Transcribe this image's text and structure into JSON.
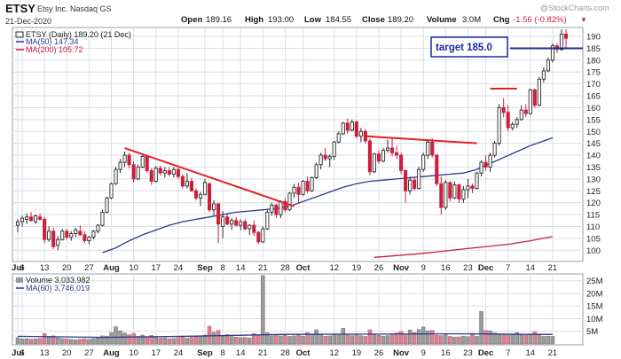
{
  "header": {
    "symbol": "ETSY",
    "company": "Etsy Inc. Nasdaq GS",
    "date": "21-Dec-2020",
    "open_label": "Open",
    "open": "189.16",
    "high_label": "High",
    "high": "193.00",
    "low_label": "Low",
    "low": "184.55",
    "close_label": "Close",
    "close": "189.20",
    "volume_label": "Volume",
    "volume": "3.0M",
    "chg_label": "Chg",
    "chg": "-1.56 (-0.82%)",
    "chg_arrow": "▼",
    "watermark": "@StockCharts.com"
  },
  "legend": {
    "price": "ETSY (Daily) 189.20 (21 Dec)",
    "ma50": "MA(50) 147.34",
    "ma200": "MA(200) 105.72",
    "volume": "Volume 3,033,982",
    "vol_ma": "MA(60) 3,746,019"
  },
  "annotation": {
    "target": "target 185.0"
  },
  "colors": {
    "up": "#2a2a2a",
    "down": "#cc1f3d",
    "ma50": "#2b3a8f",
    "ma200": "#cc1f3d",
    "trend": "#e32020",
    "target_line": "#1c2a9e",
    "vol_up": "#9a9a9a",
    "vol_down": "#d9828f",
    "grid": "#d9dde6"
  },
  "chart_data": [
    {
      "type": "candlestick",
      "title": "ETSY (Daily)",
      "ylim": [
        96,
        193
      ],
      "y_ticks": [
        100,
        105,
        110,
        115,
        120,
        125,
        130,
        135,
        140,
        145,
        150,
        155,
        160,
        165,
        170,
        175,
        180,
        185,
        190
      ],
      "x_tick_labels": [
        {
          "label": "Jul",
          "bold": true,
          "idx": 0
        },
        {
          "label": "6",
          "idx": 1
        },
        {
          "label": "13",
          "idx": 6
        },
        {
          "label": "20",
          "idx": 11
        },
        {
          "label": "27",
          "idx": 16
        },
        {
          "label": "Aug",
          "bold": true,
          "idx": 21
        },
        {
          "label": "10",
          "idx": 26
        },
        {
          "label": "17",
          "idx": 31
        },
        {
          "label": "24",
          "idx": 36
        },
        {
          "label": "Sep",
          "bold": true,
          "idx": 42
        },
        {
          "label": "8",
          "idx": 46
        },
        {
          "label": "14",
          "idx": 50
        },
        {
          "label": "21",
          "idx": 55
        },
        {
          "label": "28",
          "idx": 60
        },
        {
          "label": "Oct",
          "bold": true,
          "idx": 64
        },
        {
          "label": "12",
          "idx": 71
        },
        {
          "label": "19",
          "idx": 76
        },
        {
          "label": "26",
          "idx": 81
        },
        {
          "label": "Nov",
          "bold": true,
          "idx": 86
        },
        {
          "label": "9",
          "idx": 91
        },
        {
          "label": "16",
          "idx": 96
        },
        {
          "label": "23",
          "idx": 101
        },
        {
          "label": "Dec",
          "bold": true,
          "idx": 105
        },
        {
          "label": "7",
          "idx": 110
        },
        {
          "label": "14",
          "idx": 115
        },
        {
          "label": "21",
          "idx": 120
        }
      ],
      "candles": [
        [
          110.5,
          113,
          107.5,
          112
        ],
        [
          112,
          114.5,
          110,
          113.5
        ],
        [
          113,
          115.5,
          111,
          114
        ],
        [
          114,
          116,
          112,
          112.5
        ],
        [
          112,
          115,
          111,
          114.5
        ],
        [
          114,
          115.5,
          112.5,
          113
        ],
        [
          113,
          114,
          103,
          104.5
        ],
        [
          104.5,
          110,
          103.5,
          108
        ],
        [
          108,
          109.5,
          100.5,
          101.5
        ],
        [
          102,
          106,
          100,
          104.5
        ],
        [
          104.5,
          109,
          104,
          108
        ],
        [
          108,
          109,
          104.5,
          105.5
        ],
        [
          105.5,
          108,
          104,
          107
        ],
        [
          107,
          109.5,
          105.5,
          108.5
        ],
        [
          108,
          110.5,
          106,
          106.5
        ],
        [
          106.5,
          108,
          103,
          104
        ],
        [
          104,
          106,
          102.5,
          105.5
        ],
        [
          105.5,
          108.5,
          104.5,
          108
        ],
        [
          108,
          111,
          107,
          110.5
        ],
        [
          110.5,
          117,
          110,
          116
        ],
        [
          116,
          122.5,
          115.5,
          122
        ],
        [
          122,
          128.5,
          121.5,
          128
        ],
        [
          128,
          135,
          127.5,
          134
        ],
        [
          134,
          138.5,
          132.5,
          137
        ],
        [
          137,
          141.5,
          135,
          140
        ],
        [
          140,
          141,
          134.5,
          136
        ],
        [
          136,
          137.5,
          128.5,
          130
        ],
        [
          130,
          136,
          129.5,
          135
        ],
        [
          135,
          140.5,
          134.5,
          139.5
        ],
        [
          139.5,
          140,
          132.5,
          133.5
        ],
        [
          133.5,
          134.5,
          127.5,
          129
        ],
        [
          129,
          135.5,
          128.5,
          134.5
        ],
        [
          134.5,
          135.5,
          131.5,
          132.5
        ],
        [
          132.5,
          135,
          130.5,
          133.5
        ],
        [
          133.5,
          135,
          131,
          132
        ],
        [
          132,
          135,
          130.5,
          134
        ],
        [
          134,
          135,
          130,
          131
        ],
        [
          131,
          132,
          126,
          127
        ],
        [
          127,
          132.5,
          126,
          129
        ],
        [
          129,
          130.5,
          124.5,
          125
        ],
        [
          125,
          126,
          121,
          122
        ],
        [
          122,
          124.5,
          118.5,
          123.5
        ],
        [
          123.5,
          130,
          123,
          128.5
        ],
        [
          128,
          128.5,
          116,
          117
        ],
        [
          117,
          121,
          114.5,
          119.5
        ],
        [
          119.5,
          120,
          103,
          111
        ],
        [
          110,
          116.5,
          105,
          114
        ],
        [
          114,
          115,
          110.5,
          111
        ],
        [
          111,
          113.5,
          108.5,
          112.5
        ],
        [
          112.5,
          114,
          110,
          110.5
        ],
        [
          110.5,
          113,
          108.5,
          112
        ],
        [
          112,
          113,
          108.5,
          109
        ],
        [
          109,
          111,
          106.5,
          110.5
        ],
        [
          110.5,
          112.5,
          106,
          107.5
        ],
        [
          107.5,
          108,
          102.5,
          103.5
        ],
        [
          103.5,
          110,
          103,
          109
        ],
        [
          109,
          117,
          108.5,
          116
        ],
        [
          116,
          120,
          114.5,
          119
        ],
        [
          119,
          119.5,
          113.5,
          115
        ],
        [
          115,
          121,
          113.5,
          120.5
        ],
        [
          120.5,
          122,
          116,
          117
        ],
        [
          117,
          124.5,
          116.5,
          124
        ],
        [
          124,
          128,
          122,
          126.5
        ],
        [
          126.5,
          128.5,
          120,
          123.5
        ],
        [
          123.5,
          129.5,
          123,
          129
        ],
        [
          129,
          131,
          124,
          125
        ],
        [
          125,
          131,
          124.5,
          130.5
        ],
        [
          130.5,
          137,
          130,
          136
        ],
        [
          136,
          141,
          134,
          140
        ],
        [
          140,
          143,
          137.5,
          138.5
        ],
        [
          138.5,
          140.5,
          135,
          139.5
        ],
        [
          139.5,
          146,
          138,
          145.5
        ],
        [
          145.5,
          150,
          145,
          149
        ],
        [
          149,
          154,
          148.5,
          153.5
        ],
        [
          153.5,
          155.5,
          149,
          150.5
        ],
        [
          150.5,
          155,
          150,
          154
        ],
        [
          154,
          154.5,
          147,
          148
        ],
        [
          148,
          151.5,
          145.5,
          150
        ],
        [
          150,
          151,
          145,
          146
        ],
        [
          146,
          147,
          131.5,
          133
        ],
        [
          133,
          141,
          132.5,
          140.5
        ],
        [
          140.5,
          142,
          136.5,
          137.5
        ],
        [
          137.5,
          143,
          137,
          142
        ],
        [
          142,
          146.5,
          141,
          143
        ],
        [
          143,
          147.5,
          139.5,
          141
        ],
        [
          141,
          144,
          138.5,
          140
        ],
        [
          140,
          141,
          132,
          133.5
        ],
        [
          133.5,
          134,
          120,
          125
        ],
        [
          125,
          131,
          123.5,
          129.5
        ],
        [
          129.5,
          130.5,
          125,
          126
        ],
        [
          126,
          135,
          125.5,
          134
        ],
        [
          134,
          141,
          133,
          140
        ],
        [
          140,
          146,
          138.5,
          145.5
        ],
        [
          145.5,
          147,
          139,
          140
        ],
        [
          140,
          140.5,
          127,
          128
        ],
        [
          128,
          131,
          115,
          118
        ],
        [
          118,
          129.5,
          117,
          128.5
        ],
        [
          128.5,
          129,
          120.5,
          122
        ],
        [
          122,
          129,
          121.5,
          127.5
        ],
        [
          127.5,
          128,
          120,
          121.5
        ],
        [
          121.5,
          127,
          120,
          125.5
        ],
        [
          125.5,
          130,
          122,
          127
        ],
        [
          127,
          128,
          124,
          126
        ],
        [
          126,
          133,
          125.5,
          132.5
        ],
        [
          132.5,
          138,
          131,
          137
        ],
        [
          137,
          140,
          133.5,
          135
        ],
        [
          135,
          141,
          133,
          140
        ],
        [
          140,
          146,
          139,
          145
        ],
        [
          145,
          161.5,
          144,
          160
        ],
        [
          160,
          164,
          156,
          158
        ],
        [
          158,
          161,
          150,
          151.5
        ],
        [
          151.5,
          154,
          150.5,
          153
        ],
        [
          153,
          156,
          151.5,
          155
        ],
        [
          155,
          161,
          154.5,
          159
        ],
        [
          159,
          161.5,
          156,
          157.5
        ],
        [
          157.5,
          168,
          157,
          167.5
        ],
        [
          167.5,
          168,
          160,
          161
        ],
        [
          161,
          173,
          160.5,
          172
        ],
        [
          172,
          177,
          170.5,
          175.5
        ],
        [
          175.5,
          181,
          175,
          180
        ],
        [
          180,
          187,
          179,
          186
        ],
        [
          186,
          187,
          183,
          184.5
        ],
        [
          184.5,
          193,
          184,
          191
        ],
        [
          191,
          193,
          184.55,
          189.2
        ]
      ],
      "ma50": [
        [
          19,
          99
        ],
        [
          22,
          101
        ],
        [
          25,
          104
        ],
        [
          28,
          106.5
        ],
        [
          31,
          108.5
        ],
        [
          34,
          110.5
        ],
        [
          37,
          112
        ],
        [
          40,
          113
        ],
        [
          43,
          114
        ],
        [
          46,
          115
        ],
        [
          49,
          116
        ],
        [
          52,
          116.5
        ],
        [
          55,
          117
        ],
        [
          58,
          117.5
        ],
        [
          61,
          118.5
        ],
        [
          64,
          120.5
        ],
        [
          67,
          122.5
        ],
        [
          70,
          124.5
        ],
        [
          73,
          126.5
        ],
        [
          76,
          128
        ],
        [
          79,
          129
        ],
        [
          82,
          129.5
        ],
        [
          85,
          130
        ],
        [
          88,
          130.5
        ],
        [
          91,
          131
        ],
        [
          94,
          131.5
        ],
        [
          97,
          132
        ],
        [
          100,
          132.5
        ],
        [
          103,
          134
        ],
        [
          106,
          136.5
        ],
        [
          109,
          139
        ],
        [
          112,
          141.5
        ],
        [
          115,
          144
        ],
        [
          118,
          146
        ],
        [
          120,
          147.34
        ]
      ],
      "ma200": [
        [
          80,
          97
        ],
        [
          90,
          98.5
        ],
        [
          100,
          100.5
        ],
        [
          110,
          102.5
        ],
        [
          115,
          104
        ],
        [
          120,
          105.72
        ]
      ],
      "trendlines": [
        {
          "from": [
            24,
            143
          ],
          "to": [
            62,
            118.5
          ]
        },
        {
          "from": [
            78,
            148
          ],
          "to": [
            103,
            145
          ]
        },
        {
          "from": [
            106,
            168
          ],
          "to": [
            112,
            168
          ]
        }
      ],
      "target_level": 185.0
    },
    {
      "type": "bar",
      "title": "Volume",
      "ylim": [
        0,
        27
      ],
      "y_ticks": [
        {
          "v": 5,
          "label": "5M"
        },
        {
          "v": 10,
          "label": "10M"
        },
        {
          "v": 15,
          "label": "15M"
        },
        {
          "v": 20,
          "label": "20M"
        },
        {
          "v": 25,
          "label": "25M"
        }
      ],
      "values": [
        2.5,
        2.0,
        2.1,
        1.9,
        2.0,
        2.2,
        4.1,
        3.0,
        3.2,
        2.4,
        2.1,
        2.0,
        1.8,
        1.7,
        1.9,
        2.0,
        1.8,
        2.1,
        2.3,
        3.2,
        3.1,
        4.5,
        6.8,
        5.2,
        4.3,
        3.6,
        4.2,
        3.0,
        3.5,
        2.8,
        3.4,
        2.6,
        2.3,
        2.4,
        2.1,
        2.2,
        2.5,
        2.8,
        2.3,
        2.6,
        2.9,
        2.8,
        3.5,
        7.0,
        4.6,
        5.4,
        3.1,
        3.7,
        2.9,
        2.7,
        2.5,
        2.6,
        2.4,
        4.1,
        3.6,
        27.0,
        4.4,
        3.2,
        3.6,
        3.2,
        3.4,
        3.0,
        3.2,
        3.8,
        3.1,
        4.5,
        3.7,
        5.6,
        4.0,
        3.1,
        3.2,
        4.0,
        3.5,
        6.2,
        3.7,
        3.3,
        3.6,
        3.3,
        3.0,
        5.6,
        3.9,
        3.4,
        3.1,
        3.3,
        3.8,
        4.3,
        4.9,
        3.9,
        5.5,
        4.5,
        5.7,
        6.7,
        5.2,
        5.3,
        3.4,
        3.3,
        3.6,
        3.0,
        2.7,
        2.8,
        3.1,
        2.9,
        4.2,
        3.0,
        12.8,
        5.3,
        5.2,
        4.3,
        3.7,
        3.6,
        3.5,
        3.6,
        4.5,
        3.5,
        3.4,
        3.6,
        4.8,
        3.6,
        3.0,
        3.1,
        3.0
      ],
      "ma60": [
        [
          0,
          3.0
        ],
        [
          20,
          2.6
        ],
        [
          40,
          3.1
        ],
        [
          60,
          3.8
        ],
        [
          80,
          3.9
        ],
        [
          100,
          4.0
        ],
        [
          120,
          3.75
        ]
      ]
    }
  ]
}
